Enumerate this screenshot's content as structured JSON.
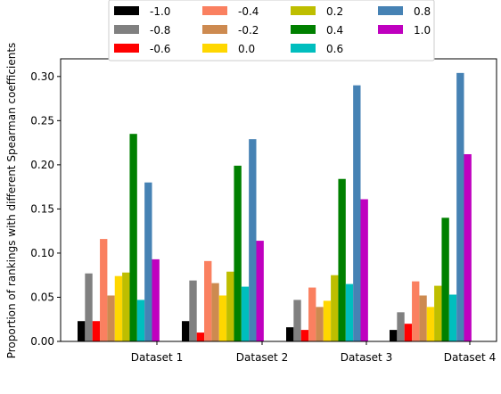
{
  "chart_data": {
    "type": "bar",
    "title": "",
    "xlabel": "",
    "ylabel": "Proportion of rankings with different Spearman coefficients",
    "categories": [
      "Dataset 1",
      "Dataset 2",
      "Dataset 3",
      "Dataset 4"
    ],
    "ylim": [
      0,
      0.32
    ],
    "yticks": [
      "0.00",
      "0.05",
      "0.10",
      "0.15",
      "0.20",
      "0.25",
      "0.30"
    ],
    "grid": false,
    "legend_position": "top-center",
    "series": [
      {
        "name": "-1.0",
        "color": "#000000",
        "values": [
          0.023,
          0.023,
          0.016,
          0.013
        ]
      },
      {
        "name": "-0.8",
        "color": "#808080",
        "values": [
          0.077,
          0.069,
          0.047,
          0.033
        ]
      },
      {
        "name": "-0.6",
        "color": "#ff0000",
        "values": [
          0.023,
          0.01,
          0.013,
          0.02
        ]
      },
      {
        "name": "-0.4",
        "color": "#fa8060",
        "values": [
          0.116,
          0.091,
          0.061,
          0.068
        ]
      },
      {
        "name": "-0.2",
        "color": "#cd8a50",
        "values": [
          0.052,
          0.066,
          0.039,
          0.052
        ]
      },
      {
        "name": "0.0",
        "color": "#ffd700",
        "values": [
          0.074,
          0.052,
          0.046,
          0.039
        ]
      },
      {
        "name": "0.2",
        "color": "#bebe00",
        "values": [
          0.078,
          0.079,
          0.075,
          0.063
        ]
      },
      {
        "name": "0.4",
        "color": "#008000",
        "values": [
          0.235,
          0.199,
          0.184,
          0.14
        ]
      },
      {
        "name": "0.6",
        "color": "#00bebe",
        "values": [
          0.047,
          0.062,
          0.065,
          0.053
        ]
      },
      {
        "name": "0.8",
        "color": "#4682b4",
        "values": [
          0.18,
          0.229,
          0.29,
          0.304
        ]
      },
      {
        "name": "1.0",
        "color": "#bf00bf",
        "values": [
          0.093,
          0.114,
          0.161,
          0.212
        ]
      }
    ]
  }
}
